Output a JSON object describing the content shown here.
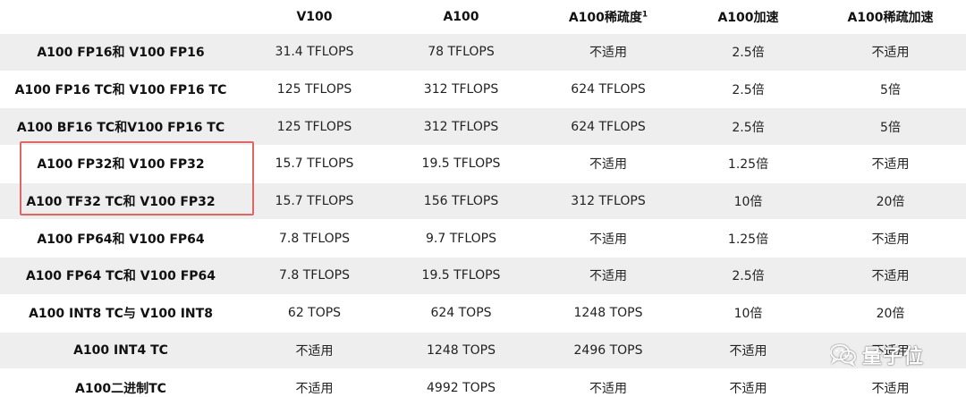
{
  "table": {
    "headers": [
      "",
      "V100",
      "A100",
      "A100稀疏度",
      "A100加速",
      "A100稀疏加速"
    ],
    "header_footnote": "1",
    "rows": [
      [
        "A100 FP16和 V100 FP16",
        "31.4 TFLOPS",
        "78 TFLOPS",
        "不适用",
        "2.5倍",
        "不适用"
      ],
      [
        "A100 FP16 TC和 V100 FP16 TC",
        "125 TFLOPS",
        "312 TFLOPS",
        "624 TFLOPS",
        "2.5倍",
        "5倍"
      ],
      [
        "A100 BF16 TC和V100 FP16 TC",
        "125 TFLOPS",
        "312 TFLOPS",
        "624 TFLOPS",
        "2.5倍",
        "5倍"
      ],
      [
        "A100 FP32和 V100 FP32",
        "15.7 TFLOPS",
        "19.5 TFLOPS",
        "不适用",
        "1.25倍",
        "不适用"
      ],
      [
        "A100 TF32 TC和 V100 FP32",
        "15.7 TFLOPS",
        "156 TFLOPS",
        "312 TFLOPS",
        "10倍",
        "20倍"
      ],
      [
        "A100 FP64和 V100 FP64",
        "7.8 TFLOPS",
        "9.7 TFLOPS",
        "不适用",
        "1.25倍",
        "不适用"
      ],
      [
        "A100 FP64 TC和 V100 FP64",
        "7.8 TFLOPS",
        "19.5 TFLOPS",
        "不适用",
        "2.5倍",
        "不适用"
      ],
      [
        "A100 INT8 TC与 V100 INT8",
        "62 TOPS",
        "624 TOPS",
        "1248 TOPS",
        "10倍",
        "20倍"
      ],
      [
        "A100 INT4 TC",
        "不适用",
        "1248 TOPS",
        "2496 TOPS",
        "不适用",
        "不适用"
      ],
      [
        "A100二进制TC",
        "不适用",
        "4992 TOPS",
        "不适用",
        "不适用",
        "不适用"
      ]
    ],
    "highlighted_rows": [
      3,
      4
    ]
  },
  "watermark": {
    "text": "量子位",
    "icon": "wechat-icon"
  },
  "colors": {
    "row_shade": "#eeeeee",
    "highlight_border": "#e06666"
  }
}
